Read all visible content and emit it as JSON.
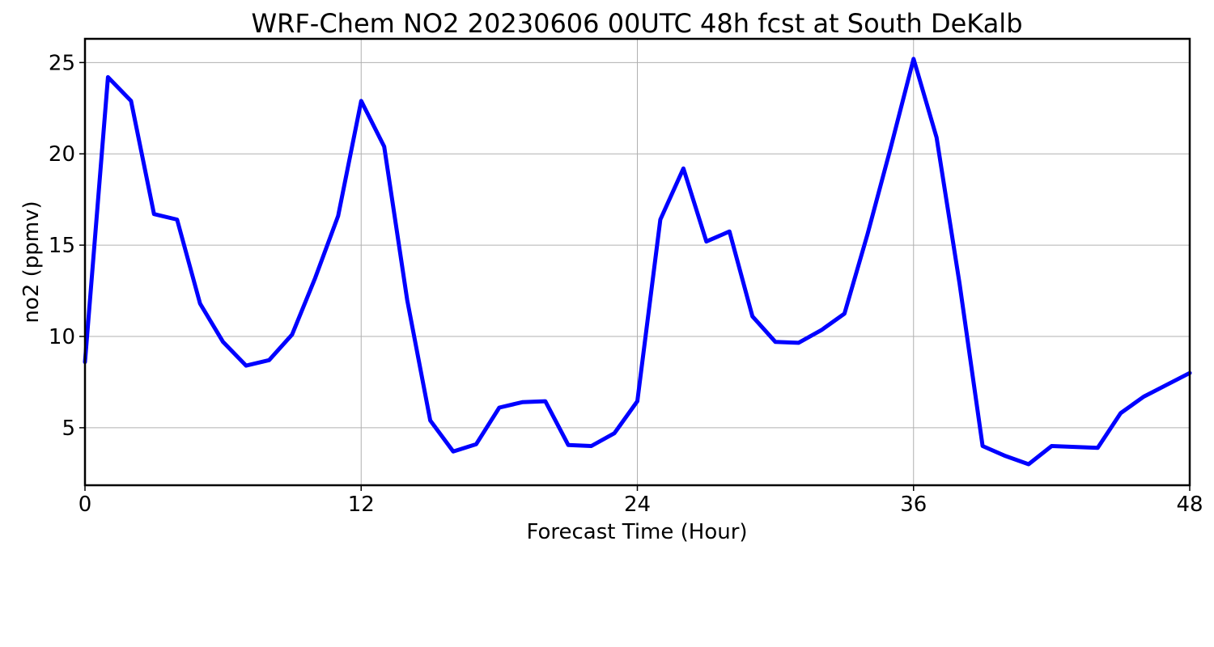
{
  "chart_data": {
    "type": "line",
    "title": "WRF-Chem NO2  20230606 00UTC 48h fcst at South DeKalb",
    "xlabel": "Forecast Time (Hour)",
    "ylabel": "no2  (ppmv)",
    "xlim": [
      0,
      48
    ],
    "ylim": [
      1.85,
      26.3
    ],
    "xticks": [
      0,
      12,
      24,
      36,
      48
    ],
    "yticks": [
      5,
      10,
      15,
      20,
      25
    ],
    "grid": true,
    "series_color": "#0000ff",
    "series": [
      {
        "x": [
          0,
          1,
          2,
          3,
          4,
          5,
          6,
          7,
          8,
          9,
          10,
          11,
          12,
          13,
          14,
          15,
          16,
          17,
          18,
          19,
          20,
          21,
          22,
          23,
          24,
          25,
          26,
          27,
          28,
          29,
          30,
          31,
          32,
          33,
          34,
          35,
          36,
          37,
          38,
          39,
          40,
          41,
          42,
          43,
          44,
          45,
          46,
          47,
          48
        ],
        "values": [
          8.6,
          24.2,
          22.9,
          16.7,
          16.4,
          11.8,
          9.7,
          8.4,
          8.7,
          10.1,
          13.2,
          16.6,
          22.9,
          20.4,
          12.0,
          5.4,
          3.7,
          4.1,
          6.1,
          6.4,
          6.45,
          4.05,
          4.0,
          4.7,
          6.45,
          16.4,
          19.2,
          15.2,
          15.75,
          11.1,
          9.7,
          9.65,
          10.35,
          11.25,
          15.6,
          20.3,
          25.2,
          20.9,
          12.9,
          4.0,
          3.45,
          3.0,
          4.0,
          3.95,
          3.9,
          5.8,
          6.7,
          7.35,
          8.0
        ]
      }
    ]
  }
}
